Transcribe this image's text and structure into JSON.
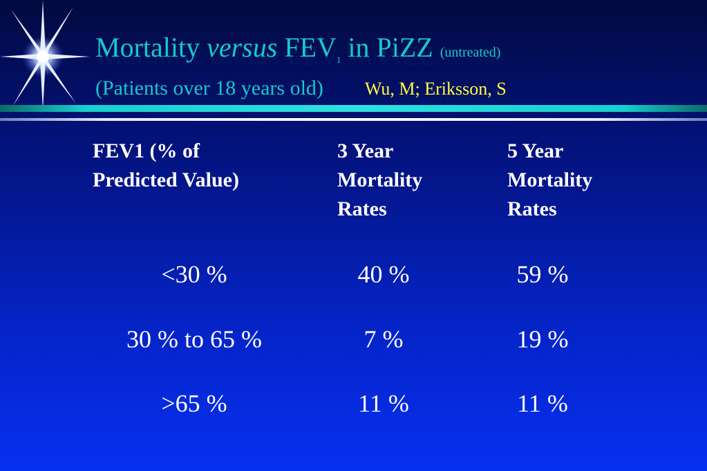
{
  "slide": {
    "title": {
      "part1": "Mortality ",
      "italic": "versus",
      "part2": " FEV",
      "sub": "1",
      "part3": " in PiZZ",
      "note": "(untreated)"
    },
    "subtitle": "(Patients over 18 years old)",
    "author": "Wu, M; Eriksson, S"
  },
  "table": {
    "headers": [
      "FEV1 (% of\nPredicted Value)",
      "3 Year\nMortality\nRates",
      "5 Year\nMortality\nRates"
    ],
    "rows": [
      [
        "<30 %",
        "40  %",
        "59 %"
      ],
      [
        "30 % to 65 %",
        "7 %",
        "19 %"
      ],
      [
        ">65 %",
        "11 %",
        "11 %"
      ]
    ]
  },
  "colors": {
    "title": "#17c9c9",
    "author": "#ffff40",
    "text": "#ffffff",
    "background": "#0524c8"
  },
  "icons": [
    "starburst-icon"
  ]
}
